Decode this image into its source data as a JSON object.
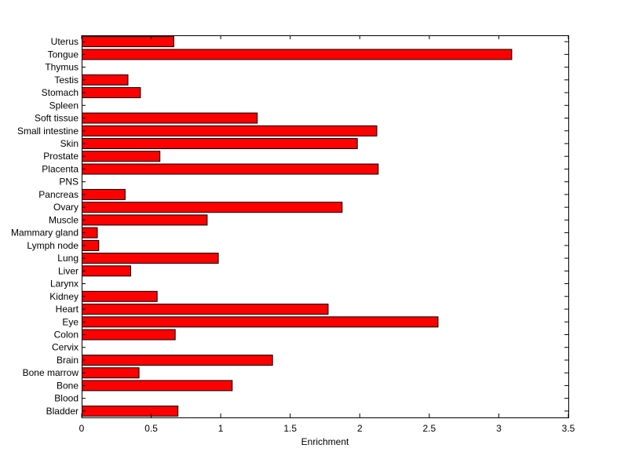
{
  "chart_data": {
    "type": "bar",
    "orientation": "horizontal",
    "title": "",
    "xlabel": "Enrichment",
    "ylabel": "",
    "xlim": [
      0,
      3.5
    ],
    "xticks": [
      "0",
      "0.5",
      "1",
      "1.5",
      "2",
      "2.5",
      "3",
      "3.5"
    ],
    "grid": false,
    "bar_color": "#ff0000",
    "edge_color": "#000000",
    "categories": [
      "Uterus",
      "Tongue",
      "Thymus",
      "Testis",
      "Stomach",
      "Spleen",
      "Soft tissue",
      "Small intestine",
      "Skin",
      "Prostate",
      "Placenta",
      "PNS",
      "Pancreas",
      "Ovary",
      "Muscle",
      "Mammary gland",
      "Lymph node",
      "Lung",
      "Liver",
      "Larynx",
      "Kidney",
      "Heart",
      "Eye",
      "Colon",
      "Cervix",
      "Brain",
      "Bone marrow",
      "Bone",
      "Blood",
      "Bladder"
    ],
    "values": [
      0.66,
      3.09,
      0,
      0.33,
      0.42,
      0,
      1.26,
      2.12,
      1.98,
      0.56,
      2.13,
      0,
      0.31,
      1.87,
      0.9,
      0.11,
      0.12,
      0.98,
      0.35,
      0,
      0.54,
      1.77,
      2.56,
      0.67,
      0,
      1.37,
      0.41,
      1.08,
      0,
      0.69
    ]
  }
}
